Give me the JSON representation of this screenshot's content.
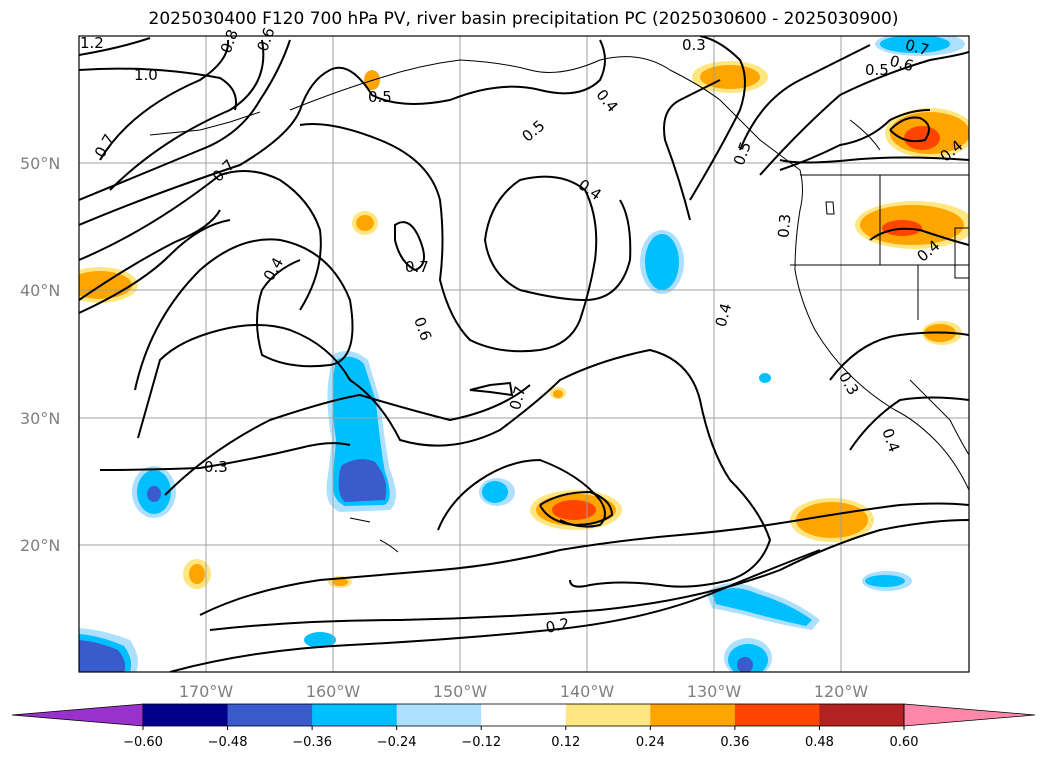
{
  "title": "2025030400 F120 700 hPa PV, river basin precipitation PC (2025030600 - 2025030900)",
  "lat_labels": [
    "50°N",
    "40°N",
    "30°N",
    "20°N"
  ],
  "lon_labels": [
    "170°W",
    "160°W",
    "150°W",
    "140°W",
    "130°W",
    "120°W"
  ],
  "contour_labels": [
    "1.2",
    "1.0",
    "0.8",
    "0.6",
    "0.5",
    "0.5",
    "0.7",
    "0.7",
    "0.4",
    "0.7",
    "0.6",
    "0.4",
    "0.7",
    "0.3",
    "0.5",
    "0.4",
    "0.3",
    "0.4",
    "0.3",
    "0.4",
    "0.3",
    "0.2",
    "0.7",
    "0.6",
    "0.5",
    "0.4",
    "0.4"
  ],
  "colorbar": {
    "ticks": [
      "−0.60",
      "−0.48",
      "−0.36",
      "−0.24",
      "−0.12",
      "0.12",
      "0.24",
      "0.36",
      "0.48",
      "0.60"
    ],
    "colors": [
      "#9932CC",
      "#00008B",
      "#3A5BCC",
      "#00BFFF",
      "#ADDFFF",
      "#FFFFFF",
      "#FFE680",
      "#FFA500",
      "#FF4500",
      "#B22222",
      "#FF88AA"
    ]
  },
  "colors": {
    "light_blue": "#ADDFFF",
    "sky_blue": "#00BFFF",
    "royal_blue": "#3A5BCC",
    "pale_yellow": "#FFE680",
    "orange": "#FFA500",
    "red_orange": "#FF4500",
    "grid": "#A0A0A0"
  }
}
